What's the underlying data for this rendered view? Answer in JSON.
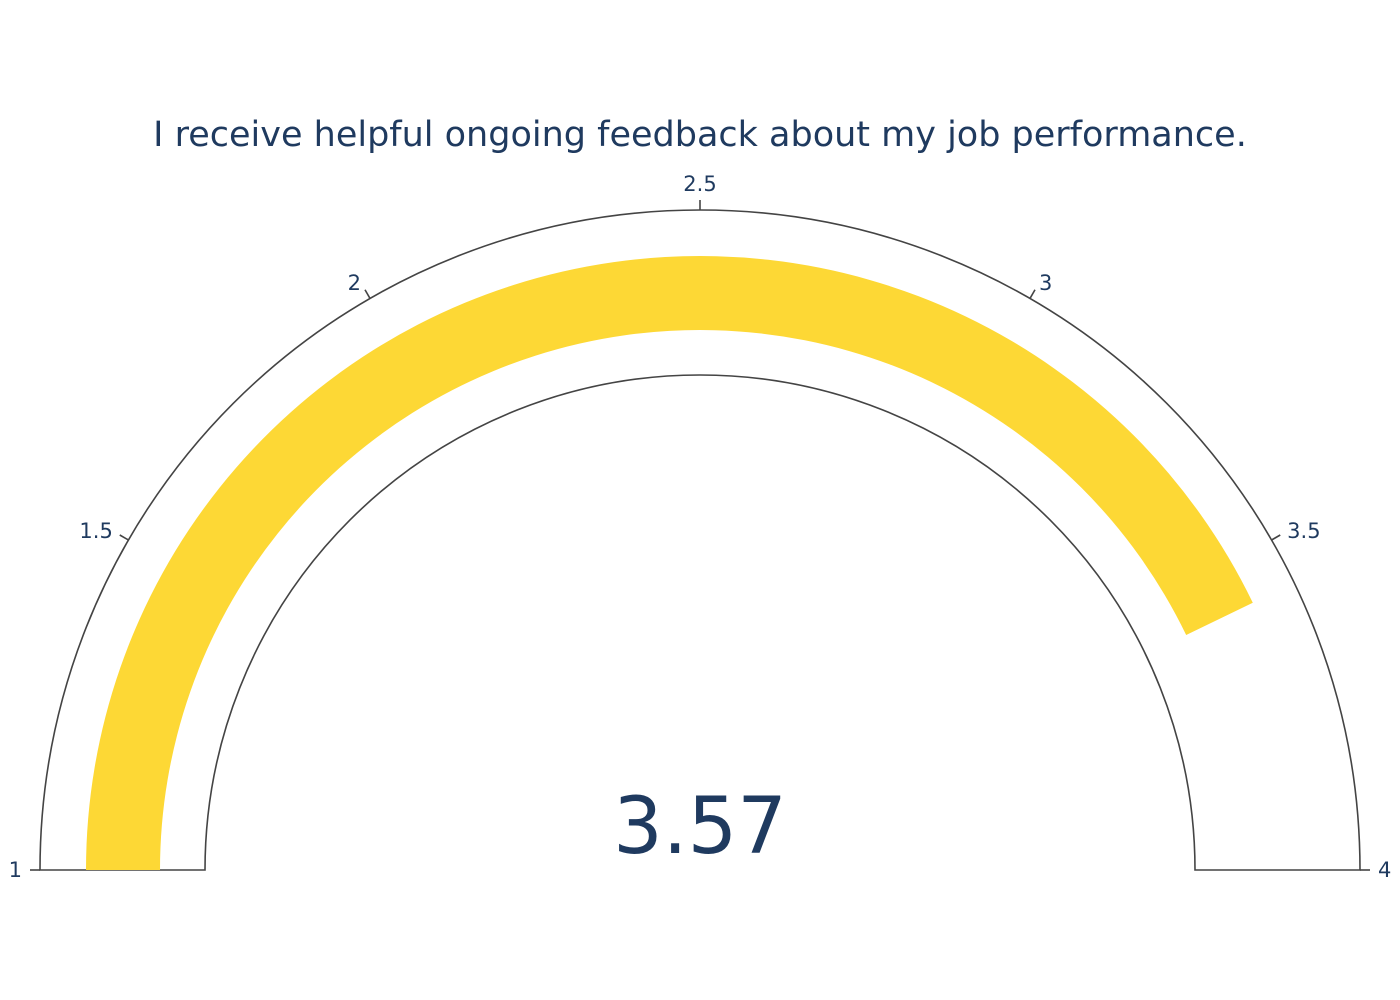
{
  "chart_data": {
    "type": "gauge",
    "title": "I receive helpful ongoing feedback about my job performance.",
    "value": 3.57,
    "value_label": "3.57",
    "range": [
      1,
      4
    ],
    "ticks": [
      1,
      1.5,
      2,
      2.5,
      3,
      3.5,
      4
    ],
    "tick_labels": [
      "1",
      "1.5",
      "2",
      "2.5",
      "3",
      "3.5",
      "4"
    ],
    "bar_color": "#FDD835",
    "outline_color": "#444444",
    "text_color": "#1F3A5F",
    "background_color": "#FFFFFF"
  }
}
